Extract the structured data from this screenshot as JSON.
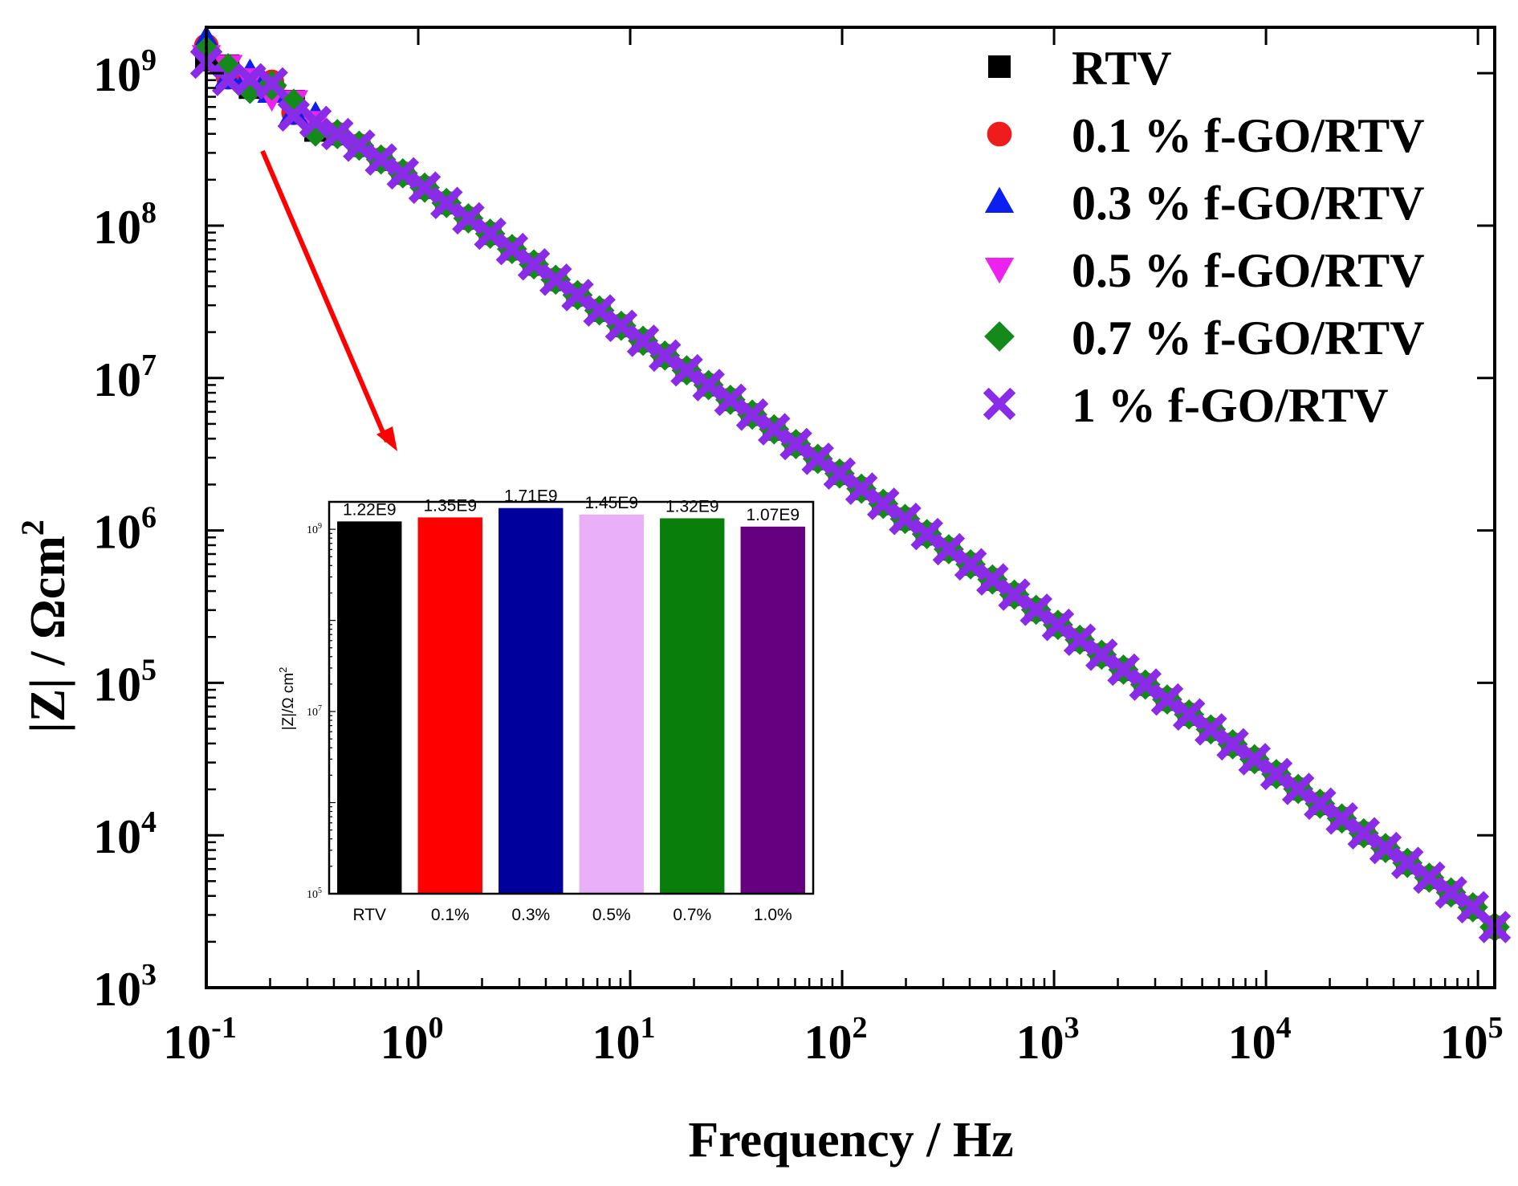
{
  "chart_data": [
    {
      "type": "scatter",
      "title": "",
      "xlabel": "Frequency / Hz",
      "ylabel": "|Z| / Ωcm²",
      "ylabel_main": "|Z| / Ωcm",
      "ylabel_sup": "2",
      "xscale": "log",
      "yscale": "log",
      "xlim": [
        0.1,
        120000
      ],
      "ylim": [
        1000,
        2000000000
      ],
      "x_ticks": [
        {
          "value": 0.1,
          "base": "10",
          "exp": "-1"
        },
        {
          "value": 1,
          "base": "10",
          "exp": "0"
        },
        {
          "value": 10,
          "base": "10",
          "exp": "1"
        },
        {
          "value": 100,
          "base": "10",
          "exp": "2"
        },
        {
          "value": 1000,
          "base": "10",
          "exp": "3"
        },
        {
          "value": 10000,
          "base": "10",
          "exp": "4"
        },
        {
          "value": 100000,
          "base": "10",
          "exp": "5"
        }
      ],
      "y_ticks": [
        {
          "value": 1000,
          "base": "10",
          "exp": "3"
        },
        {
          "value": 10000,
          "base": "10",
          "exp": "4"
        },
        {
          "value": 100000,
          "base": "10",
          "exp": "5"
        },
        {
          "value": 1000000,
          "base": "10",
          "exp": "6"
        },
        {
          "value": 10000000,
          "base": "10",
          "exp": "7"
        },
        {
          "value": 100000000,
          "base": "10",
          "exp": "8"
        },
        {
          "value": 1000000000,
          "base": "10",
          "exp": "9"
        }
      ],
      "legend_position": "top-right",
      "series": [
        {
          "name": "RTV",
          "marker": "square",
          "color": "#000000",
          "z_at_0_1Hz": 1220000000
        },
        {
          "name": "0.1 % f-GO/RTV",
          "marker": "circle",
          "color": "#ee1c1c",
          "z_at_0_1Hz": 1350000000
        },
        {
          "name": "0.3 % f-GO/RTV",
          "marker": "triangle-up",
          "color": "#0b20f0",
          "z_at_0_1Hz": 1710000000
        },
        {
          "name": "0.5 % f-GO/RTV",
          "marker": "triangle-down",
          "color": "#ee22ee",
          "z_at_0_1Hz": 1450000000
        },
        {
          "name": "0.7 % f-GO/RTV",
          "marker": "diamond",
          "color": "#138a1a",
          "z_at_0_1Hz": 1320000000
        },
        {
          "name": "1 % f-GO/RTV",
          "marker": "x",
          "color": "#8a2be8",
          "z_at_0_1Hz": 1070000000
        }
      ],
      "shared_trend": {
        "description": "capacitive line, slope -1 on log-log",
        "x": [
          0.1,
          0.2,
          0.3,
          0.5,
          1,
          10,
          100,
          1000,
          10000,
          100000,
          120000
        ],
        "y": [
          1150000000,
          800000000,
          500000000,
          350000000,
          190000000,
          20000000,
          2300000,
          250000,
          28000,
          3200,
          2500
        ]
      },
      "annotation": "arrow pointing to inset"
    },
    {
      "type": "bar",
      "title": "",
      "xlabel": "",
      "ylabel": "|Z|/Ω cm²",
      "ylabel_main": "|Z|/",
      "ylabel_unit": "Ω cm",
      "ylabel_sup": "2",
      "yscale": "log",
      "ylim": [
        100000,
        2000000000
      ],
      "y_ticks": [
        {
          "value": 100000,
          "base": "10",
          "exp": "5"
        },
        {
          "value": 10000000,
          "base": "10",
          "exp": "7"
        },
        {
          "value": 1000000000,
          "base": "10",
          "exp": "9"
        }
      ],
      "categories": [
        "RTV",
        "0.1%",
        "0.3%",
        "0.5%",
        "0.7%",
        "1.0%"
      ],
      "values": [
        1220000000,
        1350000000,
        1710000000,
        1450000000,
        1320000000,
        1070000000
      ],
      "data_labels": [
        "1.22E9",
        "1.35E9",
        "1.71E9",
        "1.45E9",
        "1.32E9",
        "1.07E9"
      ],
      "colors": [
        "#000000",
        "#ff0000",
        "#00009c",
        "#e9aff8",
        "#097e0b",
        "#650080"
      ]
    }
  ],
  "arrow_color": "#ff0000"
}
